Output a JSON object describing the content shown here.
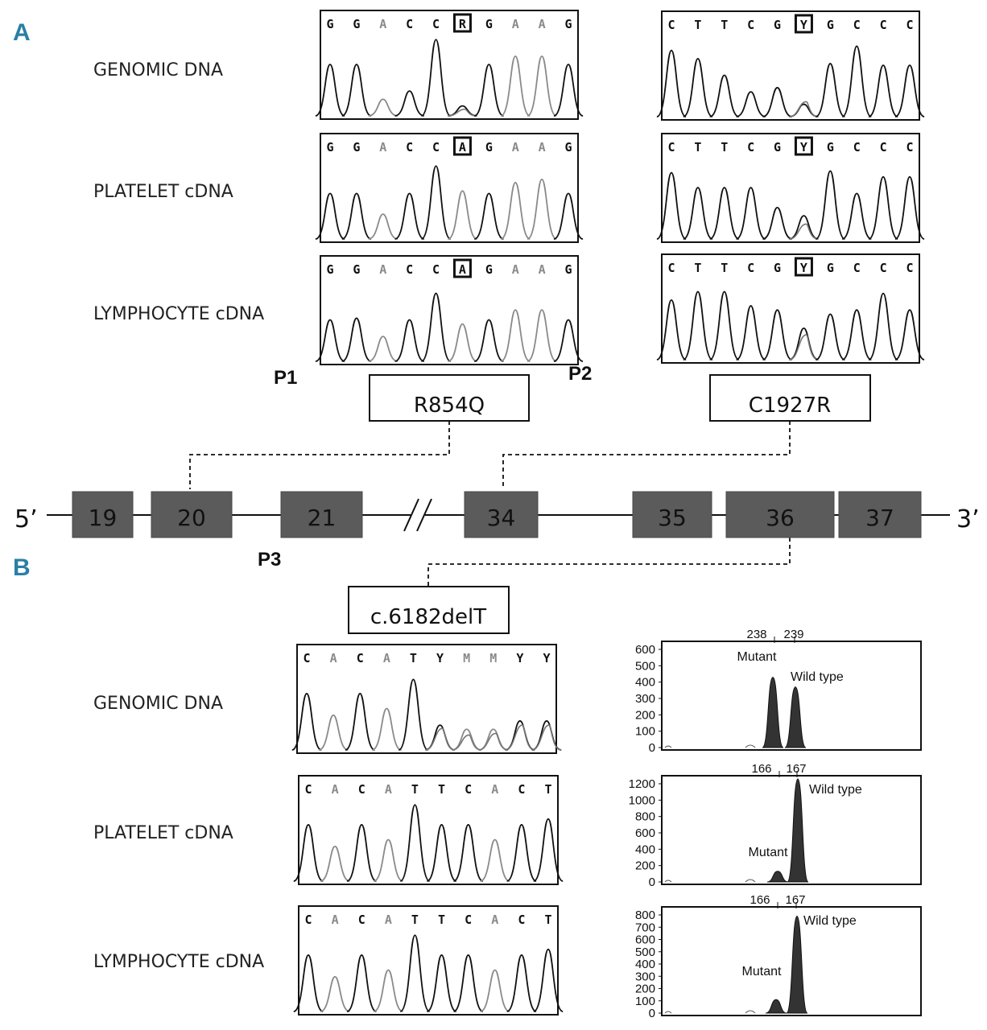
{
  "panel_a": {
    "letter": "A",
    "row_labels": [
      "GENOMIC DNA",
      "PLATELET cDNA",
      "LYMPHOCYTE cDNA"
    ],
    "traces_left": [
      {
        "bases": [
          "G",
          "G",
          "A",
          "C",
          "C",
          "R",
          "G",
          "A",
          "A",
          "G"
        ]
      },
      {
        "bases": [
          "G",
          "G",
          "A",
          "C",
          "C",
          "A",
          "G",
          "A",
          "A",
          "G"
        ]
      },
      {
        "bases": [
          "G",
          "G",
          "A",
          "C",
          "C",
          "A",
          "G",
          "A",
          "A",
          "G"
        ]
      }
    ],
    "traces_right": [
      {
        "bases": [
          "C",
          "T",
          "T",
          "C",
          "G",
          "Y",
          "G",
          "C",
          "C",
          "C"
        ]
      },
      {
        "bases": [
          "C",
          "T",
          "T",
          "C",
          "G",
          "Y",
          "G",
          "C",
          "C",
          "C"
        ]
      },
      {
        "bases": [
          "C",
          "T",
          "T",
          "C",
          "G",
          "Y",
          "G",
          "C",
          "C",
          "C"
        ]
      }
    ],
    "primers": [
      "P1",
      "P2",
      "P3"
    ],
    "mutations": [
      "R854Q",
      "C1927R"
    ]
  },
  "gene": {
    "five_prime": "5’",
    "three_prime": "3’",
    "exons": [
      "19",
      "20",
      "21",
      "34",
      "35",
      "36",
      "37"
    ]
  },
  "panel_b": {
    "letter": "B",
    "mutation": "c.6182delT",
    "row_labels": [
      "GENOMIC DNA",
      "PLATELET cDNA",
      "LYMPHOCYTE cDNA"
    ],
    "traces": [
      {
        "bases": [
          "C",
          "A",
          "C",
          "A",
          "T",
          "Y",
          "M",
          "M",
          "Y",
          "Y"
        ]
      },
      {
        "bases": [
          "C",
          "A",
          "C",
          "A",
          "T",
          "T",
          "C",
          "A",
          "C",
          "T"
        ]
      },
      {
        "bases": [
          "C",
          "A",
          "C",
          "A",
          "T",
          "T",
          "C",
          "A",
          "C",
          "T"
        ]
      }
    ]
  },
  "chart_data": [
    {
      "type": "area",
      "x_labels": [
        "238",
        "239"
      ],
      "y_ticks": [
        "0",
        "100",
        "200",
        "300",
        "400",
        "500",
        "600"
      ],
      "ylim": [
        0,
        600
      ],
      "peaks": [
        {
          "name": "Mutant",
          "value": 430
        },
        {
          "name": "Wild type",
          "value": 370
        }
      ]
    },
    {
      "type": "area",
      "x_labels": [
        "166",
        "167"
      ],
      "y_ticks": [
        "0",
        "200",
        "400",
        "600",
        "800",
        "1000",
        "1200"
      ],
      "ylim": [
        0,
        1200
      ],
      "peaks": [
        {
          "name": "Mutant",
          "value": 130
        },
        {
          "name": "Wild type",
          "value": 1290
        }
      ]
    },
    {
      "type": "area",
      "x_labels": [
        "166",
        "167"
      ],
      "y_ticks": [
        "0",
        "100",
        "200",
        "300",
        "400",
        "500",
        "600",
        "700",
        "800"
      ],
      "ylim": [
        0,
        800
      ],
      "peaks": [
        {
          "name": "Mutant",
          "value": 110
        },
        {
          "name": "Wild type",
          "value": 790
        }
      ]
    }
  ]
}
